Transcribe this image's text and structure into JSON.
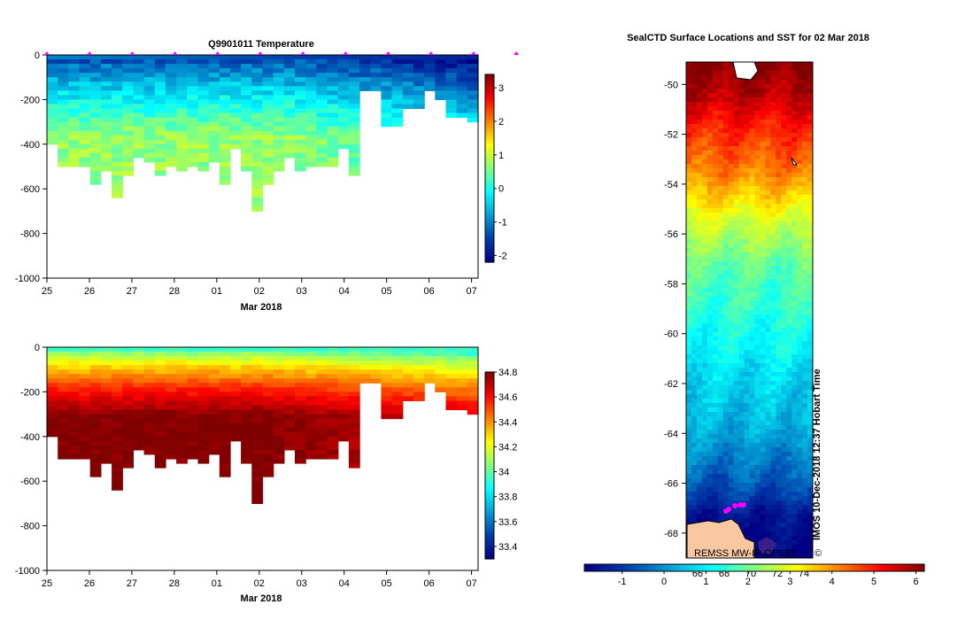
{
  "chart_data": [
    {
      "type": "heatmap",
      "title": "Q9901011  Temperature",
      "xlabel": "Mar 2018",
      "ylabel": "",
      "x_ticks": [
        "25",
        "26",
        "27",
        "28",
        "01",
        "02",
        "03",
        "04",
        "05",
        "06",
        "07"
      ],
      "y_ticks": [
        "0",
        "-200",
        "-400",
        "-600",
        "-800",
        "-1000"
      ],
      "ylim": [
        -1000,
        0
      ],
      "colorbar": {
        "ticks": [
          "3",
          "2",
          "1",
          "0",
          "-1",
          "-2"
        ],
        "range": [
          -2.2,
          3.4
        ]
      },
      "profile_max_depth": [
        400,
        500,
        500,
        500,
        570,
        510,
        640,
        530,
        460,
        470,
        530,
        500,
        510,
        490,
        510,
        470,
        570,
        420,
        520,
        700,
        570,
        510,
        460,
        510,
        500,
        500,
        490,
        420,
        530,
        160,
        160,
        320,
        320,
        240,
        240,
        160,
        200,
        280,
        280,
        290
      ],
      "surface_markers_day": [
        25.0,
        26.0,
        27.0,
        28.0,
        29.0,
        30.0,
        31.0,
        32.0,
        33.0,
        34.0,
        35.0,
        36.0
      ]
    },
    {
      "type": "heatmap",
      "title": "",
      "xlabel": "Mar 2018",
      "ylabel": "",
      "x_ticks": [
        "25",
        "26",
        "27",
        "28",
        "01",
        "02",
        "03",
        "04",
        "05",
        "06",
        "07"
      ],
      "y_ticks": [
        "0",
        "-200",
        "-400",
        "-600",
        "-800",
        "-1000"
      ],
      "ylim": [
        -1000,
        0
      ],
      "colorbar": {
        "ticks": [
          "34.8",
          "34.6",
          "34.4",
          "34.2",
          "34",
          "33.8",
          "33.6",
          "33.4"
        ],
        "range": [
          33.3,
          34.8
        ]
      }
    },
    {
      "type": "heatmap",
      "title": "SealCTD Surface Locations and SST for 02 Mar 2018",
      "xlabel": "",
      "ylabel": "",
      "y_ticks": [
        "-50",
        "-52",
        "-54",
        "-56",
        "-58",
        "-60",
        "-62",
        "-64",
        "-66",
        "-68"
      ],
      "ylim": [
        -69.0,
        -49.1
      ],
      "colorbar": {
        "ticks": [
          "-1",
          "0",
          "1",
          "2",
          "3",
          "4",
          "5",
          "6"
        ],
        "range": [
          -1.9,
          6.2
        ]
      },
      "side_label": "IMOS 10-Dec-2018 12:37 Hobart Time",
      "credit": "REMSS MW-IR OI SST",
      "lower_labels": [
        "66",
        "68",
        "70",
        "72",
        "74"
      ],
      "sst_by_latitude": [
        [
          -49.1,
          6.2
        ],
        [
          -50.5,
          5.7
        ],
        [
          -52,
          4.8
        ],
        [
          -53.5,
          4.2
        ],
        [
          -54.5,
          3.5
        ],
        [
          -55.5,
          2.8
        ],
        [
          -56.5,
          2.3
        ],
        [
          -57.5,
          1.8
        ],
        [
          -59,
          1.5
        ],
        [
          -60.5,
          1.1
        ],
        [
          -62,
          0.7
        ],
        [
          -63.5,
          0.4
        ],
        [
          -64.5,
          0.0
        ],
        [
          -65.5,
          -0.4
        ],
        [
          -66.5,
          -0.9
        ],
        [
          -67.3,
          -1.6
        ],
        [
          -69,
          -1.9
        ]
      ]
    }
  ]
}
